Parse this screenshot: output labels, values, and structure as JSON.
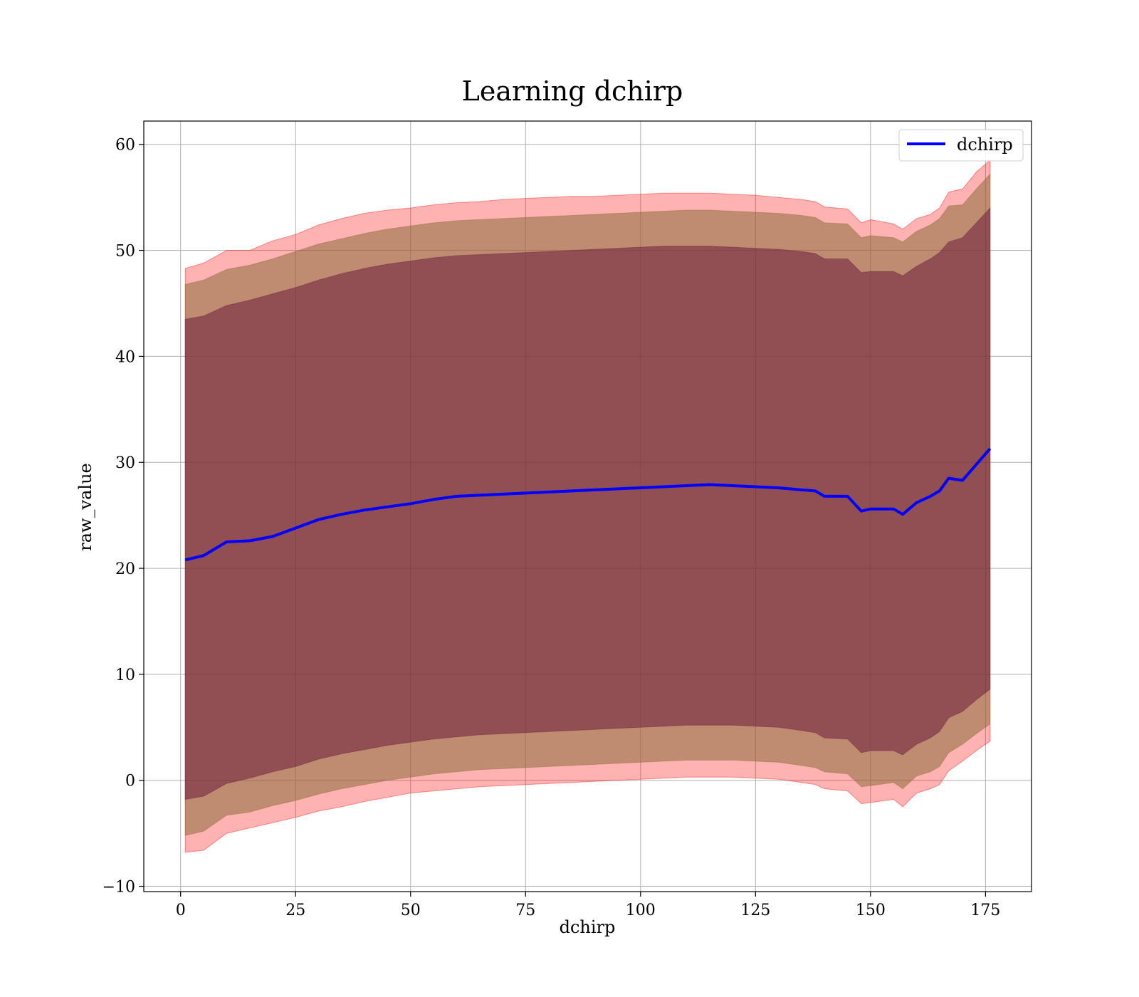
{
  "chart_data": {
    "type": "area",
    "title": "Learning dchirp",
    "xlabel": "dchirp",
    "ylabel": "raw_value",
    "xlim": [
      -8,
      185
    ],
    "ylim": [
      -10.5,
      62.2
    ],
    "xticks": [
      0,
      25,
      50,
      75,
      100,
      125,
      150,
      175
    ],
    "yticks": [
      -10,
      0,
      10,
      20,
      30,
      40,
      50,
      60
    ],
    "xtick_labels": [
      "0",
      "25",
      "50",
      "75",
      "100",
      "125",
      "150",
      "175"
    ],
    "ytick_labels": [
      "−10",
      "0",
      "10",
      "20",
      "30",
      "40",
      "50",
      "60"
    ],
    "grid": true,
    "legend": {
      "placement": "top-right",
      "entries": [
        "dchirp"
      ]
    },
    "colors": {
      "line": "#0000ff",
      "band_outer": "#ff0000",
      "band_middle": "#8b6b3d",
      "band_inner": "#6b1e3a",
      "grid": "#b0b0b0"
    },
    "series": [
      {
        "name": "dchirp",
        "x": [
          1,
          5,
          10,
          15,
          20,
          25,
          30,
          35,
          40,
          45,
          50,
          55,
          60,
          65,
          70,
          75,
          80,
          85,
          90,
          95,
          100,
          105,
          110,
          115,
          120,
          125,
          130,
          135,
          138,
          140,
          145,
          148,
          150,
          155,
          157,
          160,
          163,
          165,
          167,
          170,
          173,
          176
        ],
        "values": [
          20.8,
          21.2,
          22.5,
          22.6,
          23.0,
          23.8,
          24.6,
          25.1,
          25.5,
          25.8,
          26.1,
          26.5,
          26.8,
          26.9,
          27.0,
          27.1,
          27.2,
          27.3,
          27.4,
          27.5,
          27.6,
          27.7,
          27.8,
          27.9,
          27.8,
          27.7,
          27.6,
          27.4,
          27.3,
          26.8,
          26.8,
          25.4,
          25.6,
          25.6,
          25.1,
          26.2,
          26.8,
          27.3,
          28.5,
          28.3,
          29.8,
          31.3
        ]
      }
    ],
    "bands": [
      {
        "level": "outer",
        "x": [
          1,
          5,
          10,
          15,
          20,
          25,
          30,
          35,
          40,
          45,
          50,
          55,
          60,
          65,
          70,
          75,
          80,
          85,
          90,
          95,
          100,
          105,
          110,
          115,
          120,
          125,
          130,
          135,
          138,
          140,
          145,
          148,
          150,
          155,
          157,
          160,
          163,
          165,
          167,
          170,
          173,
          176
        ],
        "upper": [
          48.3,
          48.8,
          50.0,
          50.0,
          50.9,
          51.5,
          52.4,
          53.0,
          53.5,
          53.8,
          54.0,
          54.3,
          54.5,
          54.6,
          54.8,
          54.9,
          55.0,
          55.1,
          55.1,
          55.2,
          55.3,
          55.4,
          55.4,
          55.4,
          55.3,
          55.2,
          55.0,
          54.8,
          54.6,
          54.1,
          53.9,
          52.6,
          52.9,
          52.5,
          52.0,
          53.0,
          53.4,
          54.0,
          55.5,
          55.8,
          57.4,
          58.5
        ],
        "lower": [
          -6.8,
          -6.6,
          -5.0,
          -4.5,
          -4.0,
          -3.5,
          -2.9,
          -2.5,
          -2.0,
          -1.6,
          -1.2,
          -1.0,
          -0.8,
          -0.6,
          -0.5,
          -0.4,
          -0.3,
          -0.2,
          -0.1,
          0.0,
          0.1,
          0.2,
          0.3,
          0.3,
          0.3,
          0.2,
          0.1,
          -0.2,
          -0.4,
          -0.8,
          -1.0,
          -2.2,
          -2.1,
          -1.8,
          -2.5,
          -1.2,
          -0.8,
          -0.4,
          0.9,
          1.8,
          2.8,
          3.7
        ]
      },
      {
        "level": "middle",
        "x": [
          1,
          5,
          10,
          15,
          20,
          25,
          30,
          35,
          40,
          45,
          50,
          55,
          60,
          65,
          70,
          75,
          80,
          85,
          90,
          95,
          100,
          105,
          110,
          115,
          120,
          125,
          130,
          135,
          138,
          140,
          145,
          148,
          150,
          155,
          157,
          160,
          163,
          165,
          167,
          170,
          173,
          176
        ],
        "upper": [
          46.8,
          47.2,
          48.2,
          48.6,
          49.2,
          49.9,
          50.6,
          51.1,
          51.6,
          52.0,
          52.3,
          52.6,
          52.8,
          52.9,
          53.0,
          53.1,
          53.2,
          53.3,
          53.4,
          53.5,
          53.6,
          53.7,
          53.8,
          53.8,
          53.7,
          53.6,
          53.5,
          53.3,
          53.1,
          52.6,
          52.5,
          51.2,
          51.4,
          51.2,
          50.8,
          51.8,
          52.4,
          53.0,
          54.2,
          54.3,
          55.8,
          57.2
        ],
        "lower": [
          -5.2,
          -4.8,
          -3.3,
          -3.0,
          -2.4,
          -1.9,
          -1.3,
          -0.8,
          -0.4,
          0.0,
          0.3,
          0.6,
          0.8,
          1.0,
          1.1,
          1.2,
          1.3,
          1.4,
          1.5,
          1.6,
          1.7,
          1.8,
          1.9,
          1.9,
          1.9,
          1.8,
          1.7,
          1.4,
          1.2,
          0.8,
          0.6,
          -0.6,
          -0.5,
          -0.2,
          -0.8,
          0.4,
          0.8,
          1.3,
          2.6,
          3.4,
          4.4,
          5.3
        ]
      },
      {
        "level": "inner",
        "x": [
          1,
          5,
          10,
          15,
          20,
          25,
          30,
          35,
          40,
          45,
          50,
          55,
          60,
          65,
          70,
          75,
          80,
          85,
          90,
          95,
          100,
          105,
          110,
          115,
          120,
          125,
          130,
          135,
          138,
          140,
          145,
          148,
          150,
          155,
          157,
          160,
          163,
          165,
          167,
          170,
          173,
          176
        ],
        "upper": [
          43.5,
          43.8,
          44.8,
          45.3,
          45.9,
          46.5,
          47.2,
          47.8,
          48.3,
          48.7,
          49.0,
          49.3,
          49.5,
          49.6,
          49.7,
          49.8,
          49.9,
          50.0,
          50.1,
          50.2,
          50.3,
          50.4,
          50.4,
          50.4,
          50.3,
          50.2,
          50.1,
          49.9,
          49.7,
          49.2,
          49.2,
          47.9,
          48.0,
          48.0,
          47.6,
          48.5,
          49.2,
          49.8,
          50.8,
          51.2,
          52.6,
          54.0
        ],
        "lower": [
          -1.8,
          -1.5,
          -0.3,
          0.2,
          0.8,
          1.3,
          2.0,
          2.5,
          2.9,
          3.3,
          3.6,
          3.9,
          4.1,
          4.3,
          4.4,
          4.5,
          4.6,
          4.7,
          4.8,
          4.9,
          5.0,
          5.1,
          5.2,
          5.2,
          5.2,
          5.1,
          5.0,
          4.7,
          4.5,
          4.0,
          3.9,
          2.6,
          2.8,
          2.8,
          2.4,
          3.4,
          4.0,
          4.6,
          5.9,
          6.5,
          7.6,
          8.6
        ]
      }
    ]
  }
}
